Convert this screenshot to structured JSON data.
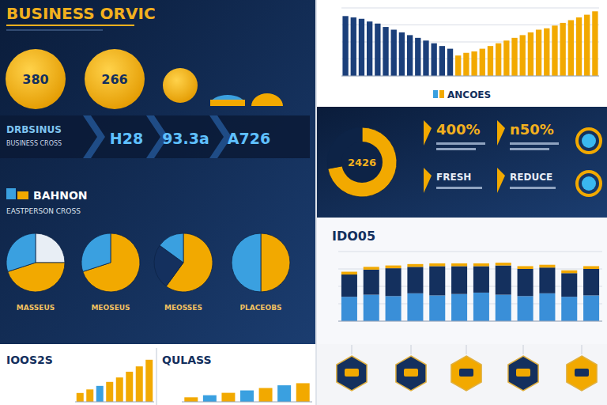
{
  "header": {
    "title": "BUSINESS ORVIC"
  },
  "kpis": {
    "circles": [
      "380",
      "266"
    ],
    "label": "DRBSINUS",
    "sublabel": "BUSINESS CROSS",
    "banners": [
      "H28",
      "93.3a",
      "A726"
    ]
  },
  "section": {
    "title": "BAHNON",
    "subtitle": "EASTPERSON CROSS"
  },
  "stats": {
    "items": [
      {
        "value": "400%",
        "label": "FRESH"
      },
      {
        "value": "n50%",
        "label": "REDUCE"
      }
    ]
  },
  "chart_data": [
    {
      "type": "bar",
      "title": "ANCOES",
      "values": [
        88,
        86,
        84,
        80,
        77,
        72,
        68,
        64,
        60,
        56,
        52,
        48,
        44,
        40,
        30,
        34,
        36,
        40,
        44,
        48,
        52,
        56,
        60,
        64,
        68,
        70,
        74,
        78,
        82,
        86,
        90,
        95
      ],
      "colors": [
        "#1b3f7a",
        "#1b3f7a",
        "#1b3f7a",
        "#1b3f7a",
        "#1b3f7a",
        "#1b3f7a",
        "#1b3f7a",
        "#1b3f7a",
        "#1b3f7a",
        "#1b3f7a",
        "#1b3f7a",
        "#1b3f7a",
        "#1b3f7a",
        "#1b3f7a",
        "#f2a900",
        "#f2a900",
        "#f2a900",
        "#f2a900",
        "#f2a900",
        "#f2a900",
        "#f2a900",
        "#f2a900",
        "#f2a900",
        "#f2a900",
        "#f2a900",
        "#f2a900",
        "#f2a900",
        "#f2a900",
        "#f2a900",
        "#f2a900",
        "#f2a900",
        "#f2a900"
      ],
      "ylim": [
        0,
        100
      ],
      "yticks": [
        0,
        25,
        50,
        75,
        100
      ],
      "grid": true,
      "tick_labels": false
    },
    {
      "type": "donut",
      "title": "2426",
      "values": [
        72,
        28
      ],
      "colors": [
        "#f2a900",
        "#0d2346"
      ]
    },
    {
      "type": "pie",
      "title": "MASSEUS",
      "values": [
        25,
        45,
        30
      ],
      "colors": [
        "#e8eef5",
        "#f2a900",
        "#3aa0e0"
      ]
    },
    {
      "type": "pie",
      "title": "MEOSEUS",
      "values": [
        70,
        30
      ],
      "colors": [
        "#f2a900",
        "#3aa0e0"
      ]
    },
    {
      "type": "pie",
      "title": "MEOSSES",
      "values": [
        60,
        25,
        15
      ],
      "colors": [
        "#f2a900",
        "#14305e",
        "#3aa0e0"
      ]
    },
    {
      "type": "pie",
      "title": "PLACEOBS",
      "values": [
        50,
        50
      ],
      "colors": [
        "#f2a900",
        "#3aa0e0"
      ]
    },
    {
      "type": "bar",
      "title": "IDO05",
      "stacked": true,
      "series": [
        {
          "color": "#3a8fd8",
          "values": [
            35,
            38,
            36,
            40,
            37,
            39,
            41,
            38,
            36,
            40,
            35,
            37
          ]
        },
        {
          "color": "#14305e",
          "values": [
            32,
            36,
            40,
            38,
            42,
            40,
            38,
            42,
            39,
            37,
            34,
            38
          ]
        },
        {
          "color": "#f2a900",
          "values": [
            4,
            4,
            4,
            4,
            4,
            4,
            4,
            4,
            4,
            4,
            4,
            4
          ]
        }
      ],
      "ylim": [
        0,
        100
      ],
      "yticks": [
        0,
        25,
        50,
        75,
        100
      ],
      "grid": true,
      "tick_labels": false
    },
    {
      "type": "bar",
      "title": "IOOS2S",
      "values": [
        20,
        28,
        36,
        45,
        55,
        68,
        80,
        95
      ],
      "colors": [
        "#f2a900",
        "#f2a900",
        "#3aa0e0",
        "#f2a900",
        "#f2a900",
        "#f2a900",
        "#f2a900",
        "#f2a900"
      ],
      "ylim": [
        0,
        100
      ],
      "tick_labels": false
    },
    {
      "type": "bar",
      "title": "QULASS",
      "values": [
        15,
        22,
        30,
        38,
        46,
        55,
        62
      ],
      "colors": [
        "#f2a900",
        "#3aa0e0",
        "#f2a900",
        "#3aa0e0",
        "#f2a900",
        "#3aa0e0",
        "#f2a900"
      ],
      "ylim": [
        0,
        100
      ],
      "tick_labels": false
    }
  ]
}
